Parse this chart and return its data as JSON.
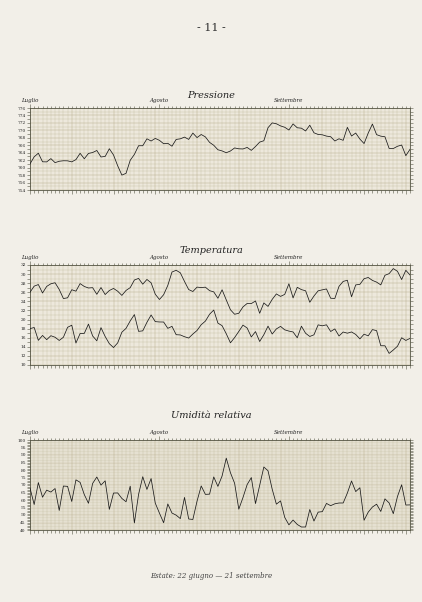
{
  "title_page": "- 11 -",
  "chart1_title": "Pressione",
  "chart2_title": "Temperatura",
  "chart3_title": "Umidità relativa",
  "footer": "Estate: 22 giugno — 21 settembre",
  "months": [
    "Luglio",
    "Agosto",
    "Settembre"
  ],
  "bg_color": "#ede8dc",
  "paper_color": "#f2efe8",
  "grid_color": "#b8b090",
  "line_color": "#1a1a1a",
  "pressione_ylim": [
    754,
    776
  ],
  "temp_ylim": [
    10,
    32
  ],
  "umid_ylim": [
    40,
    100
  ]
}
